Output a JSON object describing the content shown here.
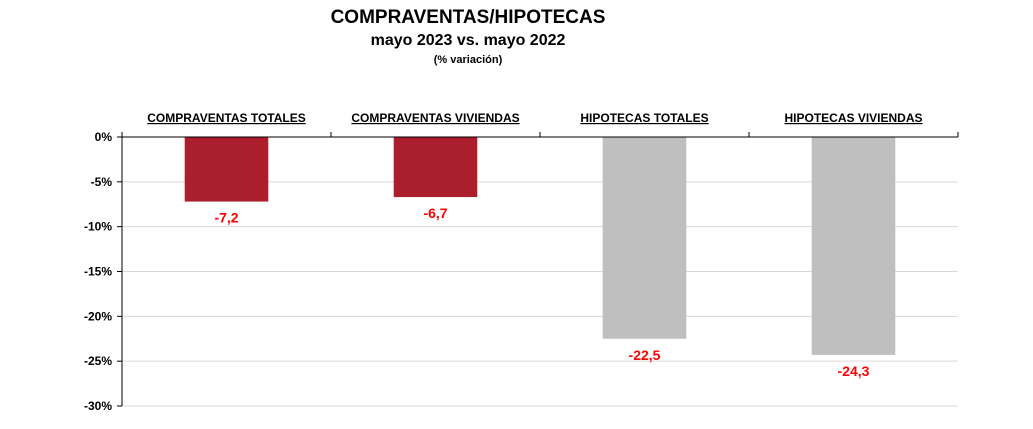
{
  "chart_data": {
    "type": "bar",
    "title": "COMPRAVENTAS/HIPOTECAS",
    "subtitle": "mayo 2023  vs. mayo 2022",
    "note": "(% variación)",
    "categories": [
      "COMPRAVENTAS TOTALES",
      "COMPRAVENTAS VIVIENDAS",
      "HIPOTECAS TOTALES",
      "HIPOTECAS VIVIENDAS"
    ],
    "values": [
      -7.2,
      -6.7,
      -22.5,
      -24.3
    ],
    "data_labels": [
      "-7,2",
      "-6,7",
      "-22,5",
      "-24,3"
    ],
    "bar_colors": [
      "#ab1e2c",
      "#ab1e2c",
      "#bfbfbf",
      "#bfbfbf"
    ],
    "data_label_color": "#ff0000",
    "ylim": [
      -30,
      0
    ],
    "yticks": [
      0,
      -5,
      -10,
      -15,
      -20,
      -25,
      -30
    ],
    "ytick_labels": [
      "0%",
      "-5%",
      "-10%",
      "-15%",
      "-20%",
      "-25%",
      "-30%"
    ],
    "category_label_position": "top",
    "grid": true,
    "gridline_color": "#d9d9d9",
    "xlabel": "",
    "ylabel": ""
  }
}
